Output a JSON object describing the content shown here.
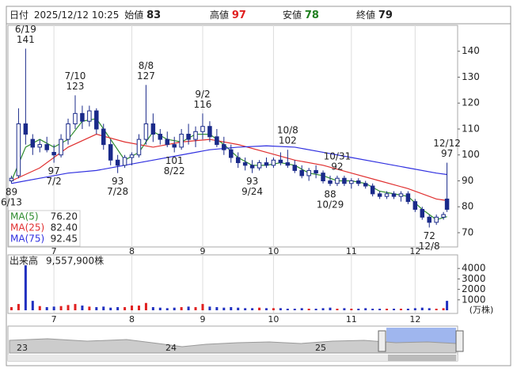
{
  "chart_data": {
    "type": "candlestick",
    "header": {
      "date_label": "日付",
      "datetime": "2025/12/12 10:25",
      "open_label": "始値",
      "open": 83,
      "high_label": "高値",
      "high": 97,
      "low_label": "安値",
      "low": 78,
      "close_label": "終値",
      "close": 79
    },
    "xlim": [
      -1,
      126
    ],
    "xticks": [
      {
        "value": 12,
        "label": "7"
      },
      {
        "value": 34,
        "label": "8"
      },
      {
        "value": 54,
        "label": "9"
      },
      {
        "value": 74,
        "label": "10"
      },
      {
        "value": 96,
        "label": "11"
      },
      {
        "value": 114,
        "label": "12"
      }
    ],
    "ylim": [
      64.5,
      150
    ],
    "yticks": [
      70,
      80,
      90,
      100,
      110,
      120,
      130,
      140
    ],
    "grid": true,
    "candle_color": "#1a2a8a",
    "candles": {
      "x": [
        0,
        2,
        4,
        6,
        8,
        10,
        12,
        14,
        16,
        18,
        20,
        22,
        24,
        26,
        28,
        30,
        32,
        34,
        36,
        38,
        40,
        42,
        44,
        46,
        48,
        50,
        52,
        54,
        56,
        58,
        60,
        62,
        64,
        66,
        68,
        70,
        72,
        74,
        76,
        78,
        80,
        82,
        84,
        86,
        88,
        90,
        92,
        94,
        96,
        98,
        100,
        102,
        104,
        106,
        108,
        110,
        112,
        114,
        116,
        118,
        120,
        122,
        123
      ],
      "open": [
        90,
        92,
        112,
        106,
        103,
        104,
        101,
        100,
        106,
        112,
        116,
        113,
        117,
        110,
        104,
        98,
        96,
        99,
        100,
        106,
        112,
        108,
        106,
        104,
        103,
        108,
        106,
        109,
        111,
        107,
        104,
        102,
        99,
        97,
        96,
        95,
        97,
        96,
        98,
        97,
        96,
        94,
        92,
        94,
        93,
        90,
        89,
        91,
        89,
        90,
        89,
        88,
        85,
        84,
        85,
        84,
        85,
        82,
        79,
        76,
        74,
        76,
        83
      ],
      "high": [
        92,
        118,
        141,
        108,
        106,
        107,
        104,
        108,
        114,
        123,
        119,
        119,
        118,
        112,
        106,
        100,
        100,
        101,
        108,
        127,
        116,
        110,
        109,
        107,
        110,
        112,
        111,
        116,
        113,
        110,
        107,
        104,
        101,
        99,
        98,
        98,
        99,
        99,
        101,
        102,
        98,
        96,
        95,
        96,
        94,
        92,
        92,
        92,
        91,
        91,
        90,
        89,
        86,
        86,
        86,
        86,
        86,
        83,
        80,
        77,
        77,
        78,
        97
      ],
      "low": [
        89,
        91,
        104,
        100,
        101,
        101,
        97,
        99,
        104,
        110,
        110,
        111,
        108,
        102,
        96,
        93,
        95,
        96,
        99,
        104,
        105,
        104,
        103,
        101,
        102,
        104,
        103,
        106,
        105,
        103,
        100,
        97,
        95,
        94,
        93,
        94,
        95,
        95,
        96,
        95,
        93,
        91,
        90,
        91,
        89,
        88,
        88,
        88,
        87,
        88,
        87,
        84,
        83,
        83,
        83,
        82,
        81,
        78,
        75,
        72,
        73,
        75,
        78
      ],
      "close": [
        91,
        112,
        108,
        103,
        104,
        102,
        100,
        106,
        112,
        116,
        113,
        117,
        110,
        104,
        98,
        96,
        99,
        100,
        106,
        112,
        108,
        106,
        104,
        103,
        108,
        106,
        109,
        111,
        107,
        104,
        102,
        99,
        97,
        96,
        95,
        97,
        96,
        98,
        97,
        96,
        94,
        92,
        94,
        93,
        90,
        89,
        91,
        89,
        90,
        89,
        88,
        85,
        84,
        85,
        84,
        85,
        82,
        79,
        76,
        74,
        76,
        77,
        79
      ]
    },
    "annotations": [
      {
        "x": 4,
        "date": "6/19",
        "value": 141,
        "side": "top"
      },
      {
        "x": 18,
        "date": "7/10",
        "value": 123,
        "side": "top"
      },
      {
        "x": 38,
        "date": "8/8",
        "value": 127,
        "side": "top"
      },
      {
        "x": 54,
        "date": "9/2",
        "value": 116,
        "side": "top"
      },
      {
        "x": 78,
        "date": "10/8",
        "value": 102,
        "side": "top"
      },
      {
        "x": 92,
        "date": "10/31",
        "value": 92,
        "side": "top"
      },
      {
        "x": 123,
        "date": "12/12",
        "value": 97,
        "side": "top"
      },
      {
        "x": 0,
        "date": "6/13",
        "value": 89,
        "side": "bottom"
      },
      {
        "x": 12,
        "date": "7/2",
        "value": 97,
        "side": "bottom"
      },
      {
        "x": 30,
        "date": "7/28",
        "value": 93,
        "side": "bottom"
      },
      {
        "x": 46,
        "date": "8/22",
        "value": 101,
        "side": "bottom"
      },
      {
        "x": 68,
        "date": "9/24",
        "value": 93,
        "side": "bottom"
      },
      {
        "x": 90,
        "date": "10/29",
        "value": 88,
        "side": "bottom"
      },
      {
        "x": 118,
        "date": "12/8",
        "value": 72,
        "side": "bottom"
      }
    ],
    "series": [
      {
        "name": "MA(5)",
        "color": "#2e8b2e",
        "legend_value": {
          "value": 76.2,
          "label": "76.20"
        },
        "x": [
          0,
          4,
          8,
          12,
          16,
          20,
          24,
          28,
          32,
          36,
          40,
          44,
          48,
          52,
          56,
          60,
          64,
          68,
          72,
          76,
          80,
          84,
          88,
          92,
          96,
          100,
          104,
          108,
          112,
          116,
          120,
          123
        ],
        "values": [
          90,
          103,
          106,
          103,
          106,
          113,
          114,
          106,
          98,
          101,
          109,
          106,
          105,
          108,
          108,
          104,
          99,
          96,
          96,
          97,
          96,
          93,
          92,
          90,
          90,
          89,
          86,
          85,
          84,
          79,
          75,
          76.2
        ]
      },
      {
        "name": "MA(25)",
        "color": "#e03030",
        "legend_value": {
          "value": 82.4,
          "label": "82.40"
        },
        "x": [
          0,
          8,
          16,
          24,
          32,
          40,
          48,
          56,
          64,
          72,
          80,
          88,
          96,
          104,
          112,
          120,
          123
        ],
        "values": [
          90,
          95,
          103,
          108,
          105,
          103,
          105,
          106,
          104,
          101,
          98,
          96,
          93,
          90,
          87,
          83,
          82.4
        ]
      },
      {
        "name": "MA(75)",
        "color": "#3030e0",
        "legend_value": {
          "value": 92.45,
          "label": "92.45"
        },
        "x": [
          0,
          8,
          16,
          24,
          32,
          40,
          48,
          56,
          64,
          72,
          80,
          88,
          96,
          104,
          112,
          120,
          123
        ],
        "values": [
          89,
          91,
          93,
          94,
          96,
          98,
          100,
          102,
          103,
          103.5,
          103,
          101,
          99,
          97,
          95,
          93,
          92.45
        ]
      }
    ],
    "volume": {
      "label": "出来高",
      "total": "9,557,900株",
      "unit": "(万株)",
      "up_color": "#e02020",
      "down_color": "#2030c0",
      "ylim": [
        0,
        5000
      ],
      "yticks": [
        1000,
        2000,
        3000,
        4000
      ],
      "values": [
        300,
        600,
        4300,
        900,
        400,
        300,
        350,
        400,
        500,
        600,
        450,
        350,
        300,
        350,
        250,
        300,
        300,
        450,
        450,
        700,
        300,
        250,
        200,
        250,
        300,
        350,
        300,
        600,
        350,
        300,
        250,
        300,
        250,
        200,
        200,
        250,
        200,
        200,
        200,
        150,
        150,
        200,
        150,
        150,
        200,
        250,
        150,
        200,
        150,
        150,
        200,
        150,
        150,
        150,
        150,
        150,
        150,
        200,
        250,
        200,
        150,
        200,
        900
      ]
    },
    "navigator": {
      "labels": [
        "23",
        "24",
        "25"
      ]
    }
  }
}
